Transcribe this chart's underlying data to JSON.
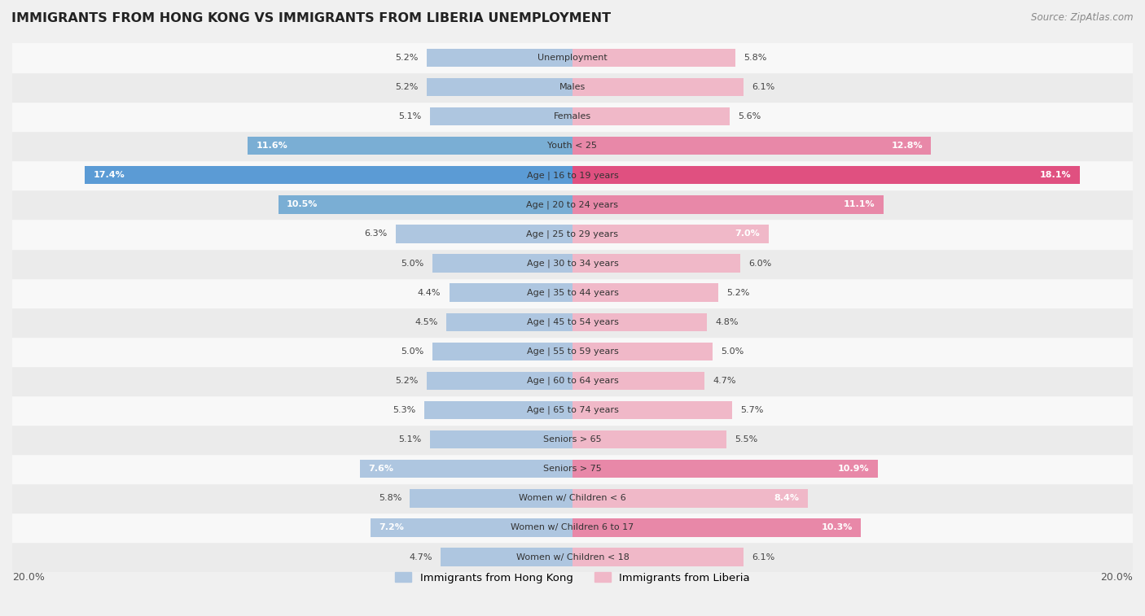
{
  "title": "IMMIGRANTS FROM HONG KONG VS IMMIGRANTS FROM LIBERIA UNEMPLOYMENT",
  "source": "Source: ZipAtlas.com",
  "categories": [
    "Unemployment",
    "Males",
    "Females",
    "Youth < 25",
    "Age | 16 to 19 years",
    "Age | 20 to 24 years",
    "Age | 25 to 29 years",
    "Age | 30 to 34 years",
    "Age | 35 to 44 years",
    "Age | 45 to 54 years",
    "Age | 55 to 59 years",
    "Age | 60 to 64 years",
    "Age | 65 to 74 years",
    "Seniors > 65",
    "Seniors > 75",
    "Women w/ Children < 6",
    "Women w/ Children 6 to 17",
    "Women w/ Children < 18"
  ],
  "hong_kong": [
    5.2,
    5.2,
    5.1,
    11.6,
    17.4,
    10.5,
    6.3,
    5.0,
    4.4,
    4.5,
    5.0,
    5.2,
    5.3,
    5.1,
    7.6,
    5.8,
    7.2,
    4.7
  ],
  "liberia": [
    5.8,
    6.1,
    5.6,
    12.8,
    18.1,
    11.1,
    7.0,
    6.0,
    5.2,
    4.8,
    5.0,
    4.7,
    5.7,
    5.5,
    10.9,
    8.4,
    10.3,
    6.1
  ],
  "hk_color_low": "#aec6e0",
  "hk_color_mid": "#7aaed4",
  "hk_color_high": "#5b9bd5",
  "lib_color_low": "#f0b8c8",
  "lib_color_mid": "#e888a8",
  "lib_color_high": "#e05080",
  "axis_limit": 20.0,
  "legend_hk": "Immigrants from Hong Kong",
  "legend_lib": "Immigrants from Liberia",
  "bg_light": "#f5f5f5",
  "bg_dark": "#e8e8e8",
  "row_bg_light": "#f8f8f8",
  "row_bg_dark": "#ebebeb"
}
